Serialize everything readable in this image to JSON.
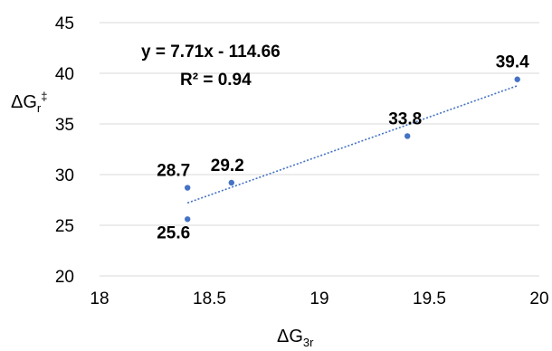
{
  "chart_data": {
    "type": "scatter",
    "x": [
      18.4,
      18.4,
      18.6,
      19.4,
      19.9
    ],
    "y": [
      28.7,
      25.6,
      29.2,
      33.8,
      39.4
    ],
    "data_labels": [
      "28.7",
      "25.6",
      "29.2",
      "33.8",
      "39.4"
    ],
    "xlim": [
      18,
      20
    ],
    "ylim": [
      20,
      45
    ],
    "xticks": [
      "18",
      "18.5",
      "19",
      "19.5",
      "20"
    ],
    "yticks": [
      "20",
      "25",
      "30",
      "35",
      "40",
      "45"
    ],
    "xlabel": {
      "main": "ΔG",
      "sub": "3r"
    },
    "ylabel": {
      "main": "ΔG",
      "sub": "r",
      "sup": "‡"
    },
    "trendline": {
      "type": "linear",
      "slope": 7.71,
      "intercept": -114.66,
      "equation": "y = 7.71x - 114.66",
      "r2": "R² = 0.94"
    },
    "colors": {
      "points": "#4472C4",
      "trendline": "#4472C4",
      "grid": "#d9d9d9"
    },
    "grid": "horizontal",
    "legend": "none"
  }
}
